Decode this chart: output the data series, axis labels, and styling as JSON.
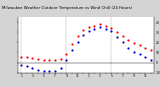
{
  "title": "Milwaukee Weather Outdoor Temperature vs Wind Chill (24 Hours)",
  "background_color": "#d4d4d4",
  "plot_bg_color": "#ffffff",
  "left_panel_color": "#404040",
  "temp_color": "#ff0000",
  "chill_color": "#0000cc",
  "black_color": "#000000",
  "grid_color": "#888888",
  "legend_blue_color": "#0000ff",
  "legend_red_color": "#ff0000",
  "x_positions": [
    0,
    1,
    2,
    3,
    4,
    5,
    6,
    7,
    8,
    9,
    10,
    11,
    12,
    13,
    14,
    15,
    16,
    17,
    18,
    19,
    20,
    21,
    22,
    23,
    24,
    25,
    26,
    27,
    28,
    29,
    30,
    31,
    32,
    33,
    34,
    35,
    36,
    37,
    38,
    39,
    40,
    41,
    42,
    43,
    44,
    45,
    46,
    47
  ],
  "x_labels": [
    "1",
    "",
    "3",
    "",
    "5",
    "",
    "7",
    "",
    "9",
    "",
    "11",
    "",
    "1",
    "",
    "3",
    "",
    "5",
    "",
    "7",
    "",
    "9",
    "",
    "11",
    "",
    "1",
    "",
    "3",
    "",
    "5",
    "",
    "7",
    "",
    "9",
    "",
    "11",
    "",
    "1",
    "",
    "3",
    "",
    "5",
    "",
    "7",
    "",
    "9",
    "",
    "11",
    ""
  ],
  "temp": [
    5,
    5,
    4,
    3,
    2,
    2,
    2,
    3,
    8,
    18,
    26,
    32,
    35,
    36,
    38,
    36,
    34,
    30,
    26,
    22,
    19,
    17,
    14,
    12
  ],
  "chill": [
    -2,
    -3,
    -5,
    -7,
    -8,
    -8,
    -8,
    -5,
    2,
    12,
    20,
    27,
    31,
    33,
    35,
    33,
    31,
    25,
    20,
    14,
    10,
    8,
    5,
    2
  ],
  "temp_x": [
    0,
    1,
    2,
    3,
    4,
    5,
    6,
    7,
    8,
    9,
    10,
    11,
    12,
    13,
    14,
    15,
    16,
    17,
    18,
    19,
    20,
    21,
    22,
    23
  ],
  "chill_x": [
    0,
    1,
    2,
    3,
    4,
    5,
    6,
    7,
    8,
    9,
    10,
    11,
    12,
    13,
    14,
    15,
    16,
    17,
    18,
    19,
    20,
    21,
    22,
    23
  ],
  "ylim": [
    -10,
    45
  ],
  "ytick_vals": [
    -10,
    0,
    10,
    20,
    30,
    40
  ],
  "ytick_labels": [
    "-10",
    "0",
    "10",
    "20",
    "30",
    "40"
  ],
  "grid_x_positions": [
    0,
    4,
    8,
    12,
    16,
    20
  ],
  "marker_size": 2.5
}
